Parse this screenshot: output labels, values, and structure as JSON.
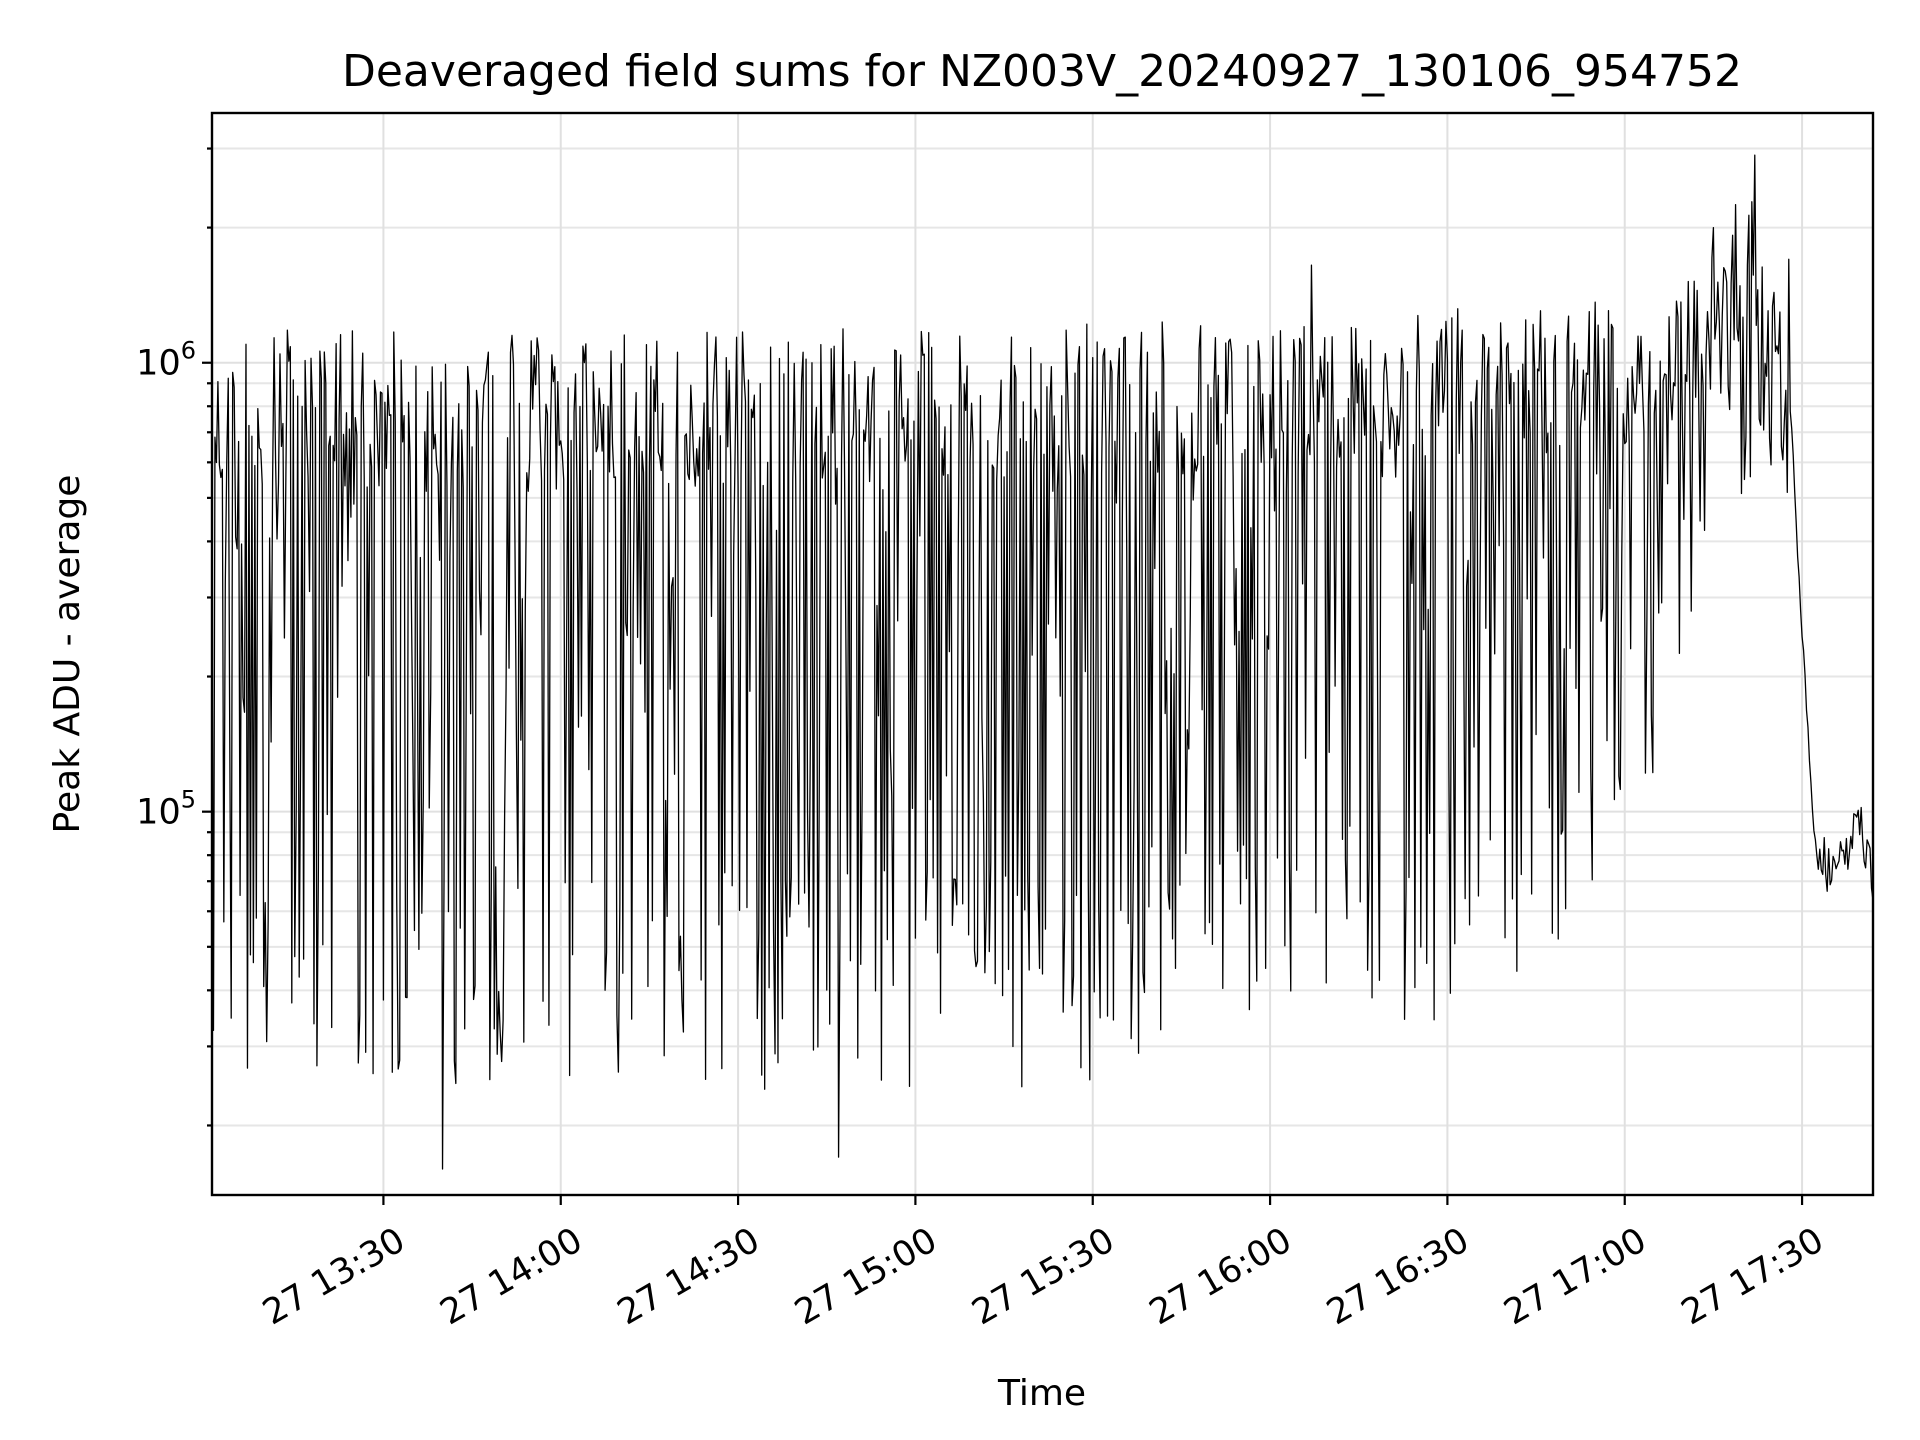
{
  "chart_data": {
    "type": "line",
    "title": "Deaveraged field sums for NZ003V_20240927_130106_954752",
    "xlabel": "Time",
    "ylabel": "Peak ADU - average",
    "x_scale": "time",
    "y_scale": "log",
    "grid": true,
    "x_tick_labels": [
      "27 13:30",
      "27 14:00",
      "27 14:30",
      "27 15:00",
      "27 15:30",
      "27 16:00",
      "27 16:30",
      "27 17:00",
      "27 17:30"
    ],
    "x_tick_times": [
      "2024-09-27 13:30",
      "2024-09-27 14:00",
      "2024-09-27 14:30",
      "2024-09-27 15:00",
      "2024-09-27 15:30",
      "2024-09-27 16:00",
      "2024-09-27 16:30",
      "2024-09-27 17:00",
      "2024-09-27 17:30"
    ],
    "xlim": [
      "2024-09-27 13:01",
      "2024-09-27 17:42"
    ],
    "y_tick_labels": [
      {
        "base": "10",
        "exp": "5",
        "value": 100000
      },
      {
        "base": "10",
        "exp": "6",
        "value": 1000000
      }
    ],
    "ylim": [
      14000,
      3600000
    ],
    "series": [
      {
        "color": "#000000",
        "sampling_minutes": 0.25,
        "envelope_upper": [
          {
            "t": "2024-09-27 13:01",
            "v": 1200000
          },
          {
            "t": "2024-09-27 14:00",
            "v": 1150000
          },
          {
            "t": "2024-09-27 15:00",
            "v": 1200000
          },
          {
            "t": "2024-09-27 16:00",
            "v": 1250000
          },
          {
            "t": "2024-09-27 16:40",
            "v": 1350000
          },
          {
            "t": "2024-09-27 17:10",
            "v": 1500000
          },
          {
            "t": "2024-09-27 17:22",
            "v": 2800000
          },
          {
            "t": "2024-09-27 17:28",
            "v": 1000000
          }
        ],
        "envelope_lower": [
          {
            "t": "2024-09-27 13:01",
            "v": 25000
          },
          {
            "t": "2024-09-27 14:00",
            "v": 24000
          },
          {
            "t": "2024-09-27 14:45",
            "v": 22000
          },
          {
            "t": "2024-09-27 15:30",
            "v": 25000
          },
          {
            "t": "2024-09-27 16:00",
            "v": 30000
          },
          {
            "t": "2024-09-27 16:40",
            "v": 35000
          },
          {
            "t": "2024-09-27 17:05",
            "v": 100000
          },
          {
            "t": "2024-09-27 17:15",
            "v": 400000
          },
          {
            "t": "2024-09-27 17:28",
            "v": 650000
          }
        ],
        "notable_points": [
          {
            "t": "2024-09-27 13:40",
            "v": 16000
          },
          {
            "t": "2024-09-27 14:47",
            "v": 17000
          },
          {
            "t": "2024-09-27 16:07",
            "v": 1650000
          },
          {
            "t": "2024-09-27 17:15",
            "v": 2000000
          },
          {
            "t": "2024-09-27 17:22",
            "v": 2900000
          },
          {
            "t": "2024-09-27 17:30",
            "v": 1700000
          }
        ],
        "decay_tail": [
          {
            "t": "2024-09-27 17:28",
            "v": 800000
          },
          {
            "t": "2024-09-27 17:30",
            "v": 250000
          },
          {
            "t": "2024-09-27 17:32",
            "v": 90000
          },
          {
            "t": "2024-09-27 17:34",
            "v": 75000
          },
          {
            "t": "2024-09-27 17:36",
            "v": 80000
          },
          {
            "t": "2024-09-27 17:38",
            "v": 85000
          },
          {
            "t": "2024-09-27 17:40",
            "v": 90000
          },
          {
            "t": "2024-09-27 17:42",
            "v": 70000
          }
        ]
      }
    ]
  }
}
